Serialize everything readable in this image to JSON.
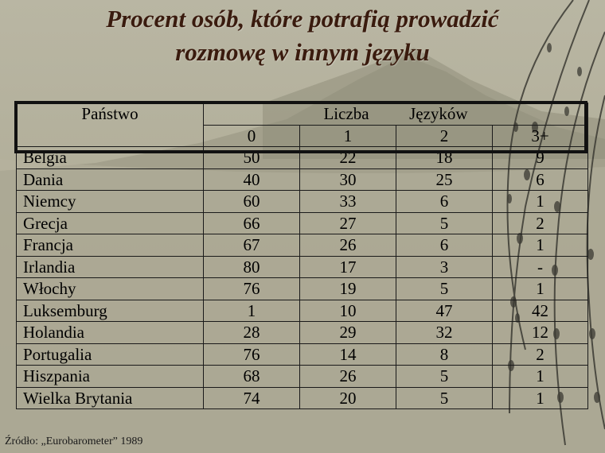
{
  "slide": {
    "title_line1": "Procent osób, które potrafią prowadzić",
    "title_line2": "rozmowę w innym języku",
    "source": "Źródło: „Eurobarometer” 1989"
  },
  "table": {
    "header": {
      "country": "Państwo",
      "group_a": "Liczba",
      "group_b": "Języków",
      "sub": [
        "0",
        "1",
        "2",
        "3+"
      ]
    },
    "rows": [
      {
        "country": "Belgia",
        "v": [
          "50",
          "22",
          "18",
          "9"
        ]
      },
      {
        "country": "Dania",
        "v": [
          "40",
          "30",
          "25",
          "6"
        ]
      },
      {
        "country": "Niemcy",
        "v": [
          "60",
          "33",
          "6",
          "1"
        ]
      },
      {
        "country": "Grecja",
        "v": [
          "66",
          "27",
          "5",
          "2"
        ]
      },
      {
        "country": "Francja",
        "v": [
          "67",
          "26",
          "6",
          "1"
        ]
      },
      {
        "country": "Irlandia",
        "v": [
          "80",
          "17",
          "3",
          "-"
        ]
      },
      {
        "country": "Włochy",
        "v": [
          "76",
          "19",
          "5",
          "1"
        ]
      },
      {
        "country": "Luksemburg",
        "v": [
          "1",
          "10",
          "47",
          "42"
        ]
      },
      {
        "country": "Holandia",
        "v": [
          "28",
          "29",
          "32",
          "12"
        ]
      },
      {
        "country": "Portugalia",
        "v": [
          "76",
          "14",
          "8",
          "2"
        ]
      },
      {
        "country": "Hiszpania",
        "v": [
          "68",
          "26",
          "5",
          "1"
        ]
      },
      {
        "country": "Wielka Brytania",
        "v": [
          "74",
          "20",
          "5",
          "1"
        ]
      }
    ]
  },
  "colors": {
    "background": "#b1ae99",
    "title": "#3a1b0e",
    "mountain": "#8f8c78",
    "branch": "#3b3a33"
  }
}
